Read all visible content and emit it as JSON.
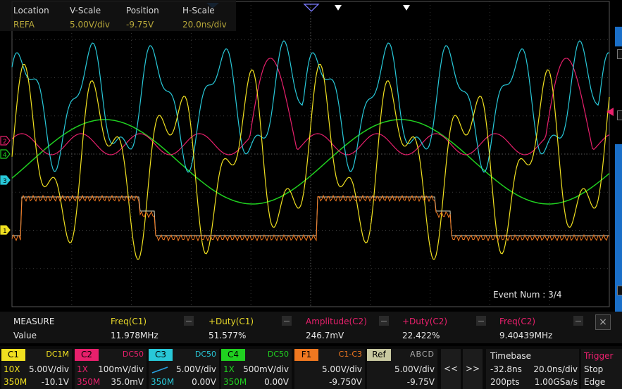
{
  "ref_info": {
    "headers": [
      "Location",
      "V-Scale",
      "Position",
      "H-Scale"
    ],
    "values": [
      "REFA",
      "5.00V/div",
      "-9.75V",
      "20.0ns/div"
    ]
  },
  "event_num": "Event Num : 3/4",
  "channel_markers": [
    "2",
    "4",
    "3",
    "1"
  ],
  "colors": {
    "c1": "#f0e020",
    "c2": "#e8206c",
    "c3": "#28c8d8",
    "c4": "#20d020",
    "f1": "#f07820",
    "ref": "#d8d8c0"
  },
  "measure": {
    "title": "MEASURE",
    "row_label": "Value",
    "items": [
      {
        "label": "Freq(C1)",
        "value": "11.978MHz",
        "color": "#e8d82a"
      },
      {
        "label": "+Duty(C1)",
        "value": "51.577%",
        "color": "#e8d82a"
      },
      {
        "label": "Amplitude(C2)",
        "value": "246.7mV",
        "color": "#e8206c"
      },
      {
        "label": "+Duty(C2)",
        "value": "22.422%",
        "color": "#e8206c"
      },
      {
        "label": "Freq(C2)",
        "value": "9.40439MHz",
        "color": "#e8206c"
      }
    ],
    "close_icon": "×"
  },
  "channels": [
    {
      "id": "C1",
      "coupling": "DC1M",
      "probe": "10X",
      "scale": "5.00V/div",
      "bw": "350M",
      "offset": "-10.1V"
    },
    {
      "id": "C2",
      "coupling": "DC50",
      "probe": "1X",
      "scale": "100mV/div",
      "bw": "350M",
      "offset": "35.0mV"
    },
    {
      "id": "C3",
      "coupling": "DC50",
      "probe": "",
      "scale": "5.00V/div",
      "bw": "350M",
      "offset": "0.00V"
    },
    {
      "id": "C4",
      "coupling": "DC50",
      "probe": "1X",
      "scale": "500mV/div",
      "bw": "350M",
      "offset": "0.00V"
    }
  ],
  "math": {
    "id": "F1",
    "expr": "C1-C3",
    "scale": "5.00V/div",
    "offset": "-9.750V"
  },
  "ref": {
    "id": "Ref",
    "slots": "ABCD",
    "scale": "5.00V/div",
    "offset": "-9.75V"
  },
  "nav": {
    "prev": "<<",
    "next": ">>"
  },
  "timebase": {
    "title": "Timebase",
    "delay": "-32.8ns",
    "scale": "20.0ns/div",
    "points": "200pts",
    "rate": "1.00GSa/s"
  },
  "trigger": {
    "title": "Trigger",
    "mode": "Stop",
    "type": "Edge"
  }
}
